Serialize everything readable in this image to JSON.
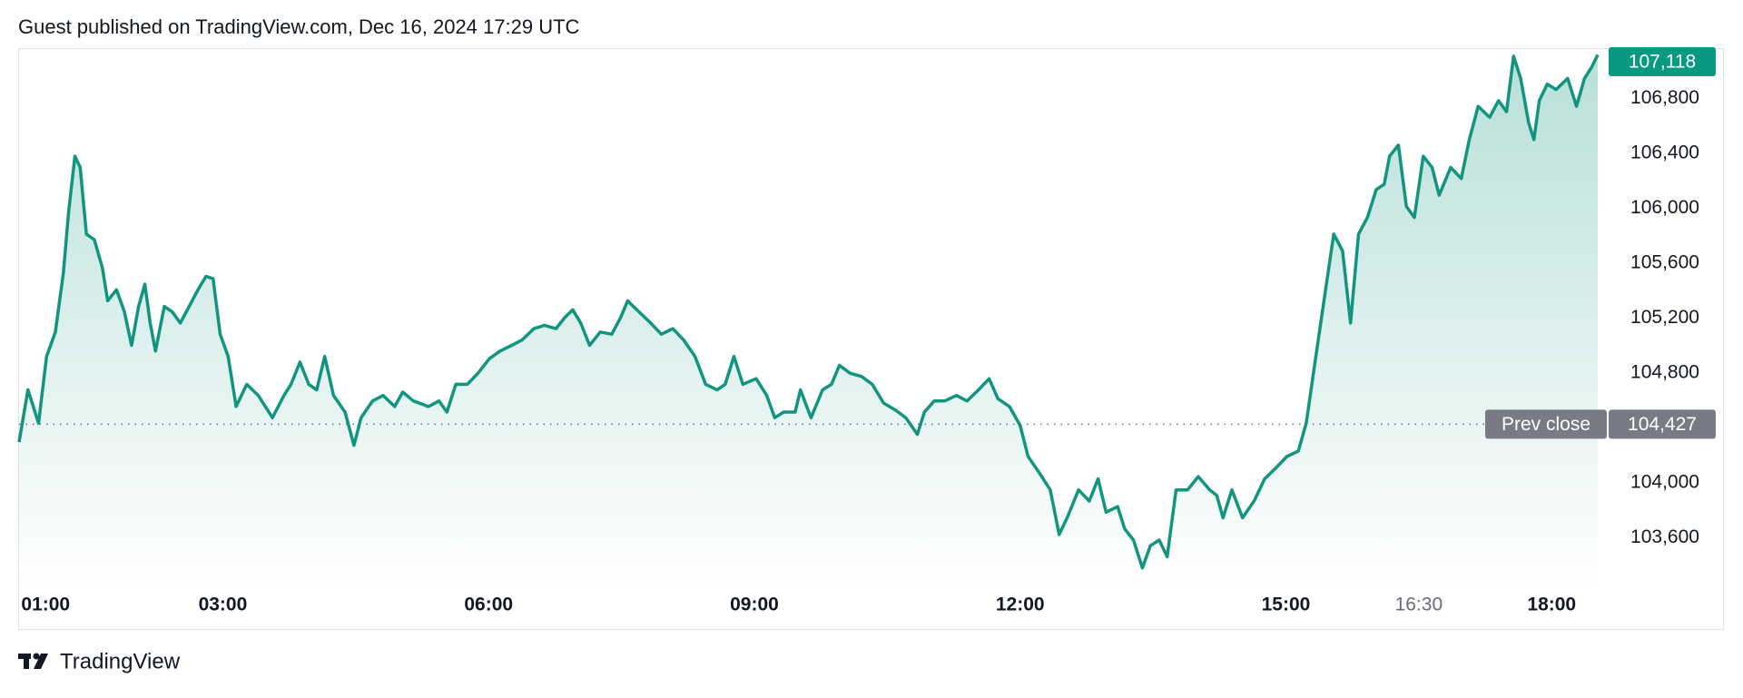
{
  "header": {
    "title": "Guest published on TradingView.com, Dec 16, 2024 17:29 UTC"
  },
  "footer": {
    "brand": "TradingView"
  },
  "chart_data": {
    "type": "area",
    "color": "#12957f",
    "x": [
      0.7,
      0.8,
      0.92,
      1.01,
      1.11,
      1.2,
      1.26,
      1.33,
      1.39,
      1.46,
      1.55,
      1.64,
      1.7,
      1.8,
      1.89,
      1.97,
      2.05,
      2.12,
      2.18,
      2.24,
      2.34,
      2.43,
      2.52,
      2.62,
      2.72,
      2.81,
      2.89,
      2.97,
      3.06,
      3.15,
      3.27,
      3.4,
      3.56,
      3.69,
      3.77,
      3.87,
      3.97,
      4.06,
      4.15,
      4.25,
      4.38,
      4.48,
      4.56,
      4.69,
      4.81,
      4.94,
      5.03,
      5.15,
      5.32,
      5.44,
      5.53,
      5.63,
      5.76,
      5.88,
      6.01,
      6.13,
      6.26,
      6.38,
      6.51,
      6.63,
      6.76,
      6.86,
      6.95,
      7.04,
      7.14,
      7.26,
      7.39,
      7.49,
      7.57,
      7.7,
      7.83,
      7.95,
      8.08,
      8.2,
      8.33,
      8.45,
      8.58,
      8.67,
      8.77,
      8.87,
      9.02,
      9.14,
      9.23,
      9.33,
      9.46,
      9.52,
      9.64,
      9.77,
      9.87,
      9.96,
      10.08,
      10.21,
      10.33,
      10.46,
      10.59,
      10.71,
      10.84,
      10.92,
      11.03,
      11.15,
      11.28,
      11.4,
      11.53,
      11.65,
      11.75,
      11.88,
      12.0,
      12.09,
      12.22,
      12.34,
      12.44,
      12.53,
      12.66,
      12.78,
      12.88,
      12.97,
      13.1,
      13.18,
      13.28,
      13.38,
      13.47,
      13.57,
      13.66,
      13.76,
      13.89,
      14.01,
      14.14,
      14.22,
      14.29,
      14.39,
      14.51,
      14.64,
      14.76,
      14.89,
      15.01,
      15.14,
      15.23,
      15.32,
      15.42,
      15.54,
      15.64,
      15.73,
      15.82,
      15.92,
      16.02,
      16.11,
      16.17,
      16.27,
      16.36,
      16.45,
      16.55,
      16.65,
      16.73,
      16.86,
      16.98,
      17.07,
      17.17,
      17.3,
      17.4,
      17.49,
      17.57,
      17.65,
      17.74,
      17.8,
      17.86,
      17.95,
      18.05,
      18.18,
      18.28,
      18.37,
      18.45,
      18.52
    ],
    "values": [
      104297,
      104678,
      104435,
      104921,
      105099,
      105528,
      105974,
      106379,
      106298,
      105812,
      105771,
      105569,
      105326,
      105407,
      105245,
      105002,
      105285,
      105448,
      105164,
      104961,
      105285,
      105245,
      105164,
      105285,
      105407,
      105504,
      105488,
      105083,
      104921,
      104556,
      104718,
      104637,
      104475,
      104637,
      104718,
      104880,
      104718,
      104678,
      104921,
      104637,
      104516,
      104273,
      104475,
      104597,
      104637,
      104556,
      104662,
      104597,
      104556,
      104597,
      104516,
      104718,
      104718,
      104799,
      104905,
      104961,
      105002,
      105042,
      105123,
      105148,
      105123,
      105204,
      105261,
      105164,
      105002,
      105099,
      105083,
      105204,
      105326,
      105245,
      105164,
      105083,
      105123,
      105042,
      104921,
      104718,
      104678,
      104718,
      104921,
      104718,
      104759,
      104637,
      104475,
      104516,
      104516,
      104678,
      104475,
      104678,
      104718,
      104856,
      104799,
      104775,
      104718,
      104581,
      104532,
      104475,
      104354,
      104516,
      104597,
      104597,
      104637,
      104597,
      104678,
      104759,
      104613,
      104556,
      104419,
      104192,
      104070,
      103949,
      103624,
      103746,
      103949,
      103868,
      104030,
      103787,
      103827,
      103665,
      103584,
      103381,
      103543,
      103584,
      103462,
      103949,
      103949,
      104046,
      103949,
      103908,
      103746,
      103949,
      103746,
      103868,
      104030,
      104111,
      104192,
      104232,
      104435,
      104840,
      105285,
      105812,
      105690,
      105164,
      105812,
      105933,
      106136,
      106176,
      106379,
      106460,
      106014,
      105933,
      106379,
      106298,
      106095,
      106298,
      106217,
      106500,
      106743,
      106662,
      106784,
      106703,
      107108,
      106946,
      106622,
      106500,
      106784,
      106905,
      106865,
      106946,
      106743,
      106946,
      107027,
      107118
    ],
    "last_label": "107,118",
    "prev_close": {
      "label": "Prev close",
      "value": 104427,
      "value_label": "104,427"
    },
    "xlim": [
      0.7,
      18.52
    ],
    "xticks": [
      {
        "value": 1,
        "label": "01:00"
      },
      {
        "value": 3,
        "label": "03:00"
      },
      {
        "value": 6,
        "label": "06:00"
      },
      {
        "value": 9,
        "label": "09:00"
      },
      {
        "value": 12,
        "label": "12:00"
      },
      {
        "value": 15,
        "label": "15:00"
      },
      {
        "value": 16.5,
        "label": "16:30"
      },
      {
        "value": 18,
        "label": "18:00"
      }
    ],
    "ylim": [
      103240,
      107160
    ],
    "yticks": [
      {
        "value": 103600,
        "label": "103,600"
      },
      {
        "value": 104000,
        "label": "104,000"
      },
      {
        "value": 104800,
        "label": "104,800"
      },
      {
        "value": 105200,
        "label": "105,200"
      },
      {
        "value": 105600,
        "label": "105,600"
      },
      {
        "value": 106000,
        "label": "106,000"
      },
      {
        "value": 106400,
        "label": "106,400"
      },
      {
        "value": 106800,
        "label": "106,800"
      }
    ]
  }
}
